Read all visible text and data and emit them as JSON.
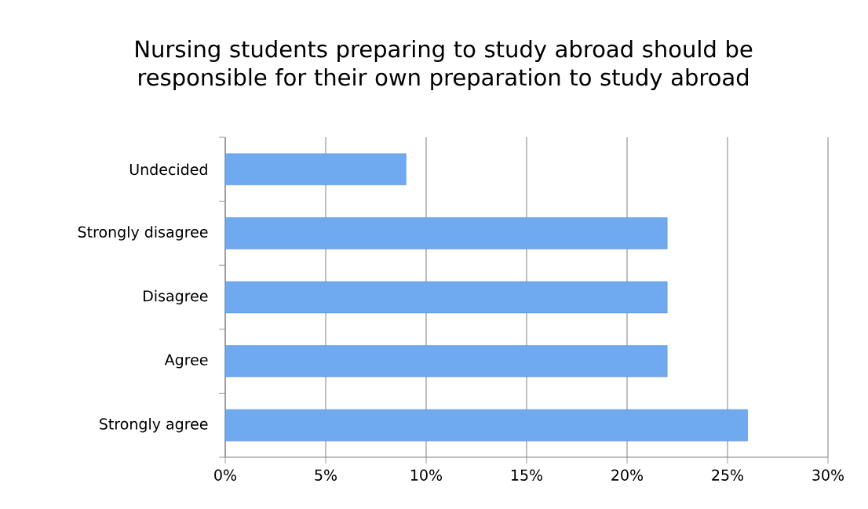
{
  "chart_data": {
    "type": "bar",
    "orientation": "horizontal",
    "title": "Nursing students preparing to study abroad should be responsible for their own preparation to study abroad",
    "categories": [
      "Undecided",
      "Strongly disagree",
      "Disagree",
      "Agree",
      "Strongly agree"
    ],
    "values": [
      9,
      22,
      22,
      22,
      26
    ],
    "color": "#6fa9ef",
    "xlim": [
      0,
      30
    ],
    "xticks": [
      {
        "value": 0,
        "label": "0%"
      },
      {
        "value": 5,
        "label": "5%"
      },
      {
        "value": 10,
        "label": "10%"
      },
      {
        "value": 15,
        "label": "15%"
      },
      {
        "value": 20,
        "label": "20%"
      },
      {
        "value": 25,
        "label": "25%"
      },
      {
        "value": 30,
        "label": "30%"
      }
    ],
    "grid": "x"
  }
}
